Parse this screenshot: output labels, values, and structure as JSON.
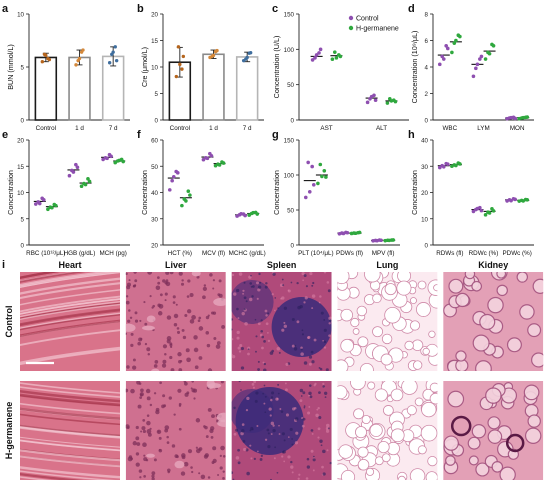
{
  "colors": {
    "control": "#8e4fb0",
    "treated": "#2fa83e",
    "bar_outline_a": "#1a1a1a",
    "bar_outline_b": "#8a8a8a",
    "bar_outline_c": "#b5b5b5",
    "dot_a": "#b5651d",
    "dot_b": "#d4883a",
    "dot_c": "#3f6e9e"
  },
  "legend": {
    "control": "Control",
    "treated": "H-germanene"
  },
  "section_i": {
    "panel_label": "i",
    "organs": [
      "Heart",
      "Liver",
      "Spleen",
      "Lung",
      "Kidney"
    ],
    "rows": [
      "Control",
      "H-germanene"
    ],
    "tissue": [
      {
        "base": "#d9738a",
        "fiber": "#f2c5d0",
        "dark": "#a8384f",
        "style": "fibers"
      },
      {
        "base": "#cf7090",
        "fiber": "#e6a7bd",
        "dark": "#7e2f5a",
        "style": "cells"
      },
      {
        "base": "#b04a7a",
        "fiber": "#d97ea3",
        "dark": "#3a2a7a",
        "style": "spleen"
      },
      {
        "base": "#fbeaf0",
        "fiber": "#ffffff",
        "dark": "#cf8aa8",
        "style": "alveoli"
      },
      {
        "base": "#e3a0b6",
        "fiber": "#f4d3de",
        "dark": "#a45580",
        "style": "tubules"
      }
    ]
  },
  "chart_data": [
    {
      "panel": "a",
      "type": "bar",
      "ylabel": "BUN (mmol/L)",
      "ylim": [
        0,
        10
      ],
      "yticks": [
        0,
        5,
        10
      ],
      "categories": [
        "Control",
        "1 d",
        "7 d"
      ],
      "values": [
        5.9,
        5.9,
        6.0
      ],
      "errors": [
        0.4,
        0.7,
        0.9
      ],
      "points": [
        [
          5.5,
          5.8,
          6.2,
          5.7,
          6.1
        ],
        [
          5.2,
          6.4,
          5.6,
          6.6,
          5.8
        ],
        [
          5.4,
          6.9,
          6.2,
          5.6,
          6.4
        ]
      ]
    },
    {
      "panel": "b",
      "type": "bar",
      "ylabel": "Cre (μmol/L)",
      "ylim": [
        0,
        20
      ],
      "yticks": [
        0,
        5,
        10,
        15,
        20
      ],
      "categories": [
        "Control",
        "1 d",
        "7 d"
      ],
      "values": [
        10.9,
        12.4,
        11.9
      ],
      "errors": [
        2.8,
        0.8,
        0.9
      ],
      "points": [
        [
          8.2,
          9.6,
          13.8,
          12.0,
          10.5
        ],
        [
          11.8,
          12.9,
          12.0,
          13.1,
          12.2
        ],
        [
          11.2,
          12.6,
          11.5,
          12.7,
          11.8
        ]
      ]
    },
    {
      "panel": "c",
      "type": "scatter",
      "ylabel": "Concentration (U/L)",
      "ylim": [
        0,
        150
      ],
      "yticks": [
        0,
        50,
        100,
        150
      ],
      "categories": [
        "AST",
        "ALT"
      ],
      "legend": true,
      "series": [
        {
          "name": "Control",
          "means": [
            90,
            31
          ],
          "points": [
            [
              85,
              95,
              88,
              100,
              92
            ],
            [
              25,
              35,
              30,
              28,
              33
            ]
          ]
        },
        {
          "name": "H-germanene",
          "means": [
            91,
            27
          ],
          "points": [
            [
              86,
              92,
              96,
              90,
              88
            ],
            [
              24,
              28,
              30,
              26,
              27
            ]
          ]
        }
      ]
    },
    {
      "panel": "d",
      "type": "scatter",
      "ylabel": "Concentration (10⁹/μL)",
      "ylim": [
        0,
        8
      ],
      "yticks": [
        0,
        2,
        4,
        6,
        8
      ],
      "categories": [
        "WBC",
        "LYM",
        "MON"
      ],
      "series": [
        {
          "name": "Control",
          "means": [
            4.9,
            4.2,
            0.15
          ],
          "points": [
            [
              4.2,
              5.6,
              4.8,
              5.4,
              4.6
            ],
            [
              3.3,
              4.6,
              3.9,
              4.8,
              4.2
            ],
            [
              0.1,
              0.2,
              0.15,
              0.12,
              0.18
            ]
          ]
        },
        {
          "name": "H-germanene",
          "means": [
            5.9,
            5.2,
            0.18
          ],
          "points": [
            [
              5.1,
              6.4,
              5.8,
              6.3,
              6.0
            ],
            [
              4.6,
              5.7,
              5.1,
              5.6,
              5.0
            ],
            [
              0.1,
              0.2,
              0.15,
              0.22,
              0.18
            ]
          ]
        }
      ]
    },
    {
      "panel": "e",
      "type": "scatter",
      "ylabel": "Concentration",
      "ylim": [
        0,
        20
      ],
      "yticks": [
        0,
        5,
        10,
        15,
        20
      ],
      "categories": [
        "RBC (10¹²/μL)",
        "HGB (g/dL)",
        "MCH (pg)"
      ],
      "series": [
        {
          "name": "Control",
          "means": [
            8.3,
            14.3,
            16.7
          ],
          "points": [
            [
              7.8,
              8.9,
              8.2,
              8.6,
              7.9
            ],
            [
              13.2,
              15.3,
              14.2,
              14.8,
              13.9
            ],
            [
              16.3,
              17.2,
              16.6,
              16.9,
              16.5
            ]
          ]
        },
        {
          "name": "H-germanene",
          "means": [
            7.3,
            11.8,
            16.0
          ],
          "points": [
            [
              6.8,
              7.7,
              7.2,
              7.5,
              7.1
            ],
            [
              11.2,
              12.6,
              11.7,
              12.1,
              11.5
            ],
            [
              15.7,
              16.3,
              16.0,
              15.9,
              16.1
            ]
          ]
        }
      ]
    },
    {
      "panel": "f",
      "type": "scatter",
      "ylabel": "Concentration",
      "ylim": [
        20,
        60
      ],
      "yticks": [
        20,
        30,
        40,
        50,
        60
      ],
      "categories": [
        "HCT (%)",
        "MCV (fl)",
        "MCHC (g/dL)"
      ],
      "series": [
        {
          "name": "Control",
          "means": [
            45.5,
            53.5,
            31.5
          ],
          "points": [
            [
              41.0,
              48.0,
              44.5,
              47.5,
              46.0
            ],
            [
              52.5,
              54.8,
              53.2,
              54.0,
              53.0
            ],
            [
              31.0,
              31.8,
              31.5,
              31.2,
              31.9
            ]
          ]
        },
        {
          "name": "H-germanene",
          "means": [
            38.0,
            51.0,
            32.0
          ],
          "points": [
            [
              35.0,
              40.5,
              37.5,
              39.0,
              36.8
            ],
            [
              50.2,
              51.6,
              50.8,
              51.2,
              50.5
            ],
            [
              31.4,
              32.4,
              32.0,
              31.8,
              32.3
            ]
          ]
        }
      ]
    },
    {
      "panel": "g",
      "type": "scatter",
      "ylabel": "Concentration",
      "ylim": [
        0,
        150
      ],
      "yticks": [
        0,
        50,
        100,
        150
      ],
      "categories": [
        "PLT (10⁴/μL)",
        "PDWs (fl)",
        "MPV (fl)"
      ],
      "series": [
        {
          "name": "Control",
          "means": [
            92,
            17,
            6.5
          ],
          "points": [
            [
              68,
              112,
              118,
              86,
              76
            ],
            [
              16,
              18,
              17,
              17.5,
              16.5
            ],
            [
              6,
              7,
              6.5,
              6.8,
              6.2
            ]
          ]
        },
        {
          "name": "H-germanene",
          "means": [
            100,
            17,
            6.8
          ],
          "points": [
            [
              88,
              106,
              115,
              97,
              98
            ],
            [
              16.5,
              17.5,
              17,
              18,
              16.8
            ],
            [
              6.2,
              7,
              6.8,
              7.2,
              6.6
            ]
          ]
        }
      ]
    },
    {
      "panel": "h",
      "type": "scatter",
      "ylabel": "Concentration",
      "ylim": [
        0,
        40
      ],
      "yticks": [
        0,
        10,
        20,
        30,
        40
      ],
      "categories": [
        "RDWs (fl)",
        "RDWc (%)",
        "PDWc (%)"
      ],
      "series": [
        {
          "name": "Control",
          "means": [
            30.2,
            13.5,
            17.2
          ],
          "points": [
            [
              29.5,
              31.0,
              30.2,
              30.8,
              29.8
            ],
            [
              12.8,
              14.2,
              13.5,
              13.1,
              13.9
            ],
            [
              16.8,
              17.6,
              17.2,
              17.4,
              16.9
            ]
          ]
        },
        {
          "name": "H-germanene",
          "means": [
            30.6,
            12.8,
            17.0
          ],
          "points": [
            [
              30.0,
              31.2,
              30.5,
              30.9,
              30.3
            ],
            [
              11.5,
              13.8,
              12.5,
              13.0,
              12.2
            ],
            [
              16.7,
              17.3,
              17.0,
              17.2,
              16.8
            ]
          ]
        }
      ]
    }
  ]
}
